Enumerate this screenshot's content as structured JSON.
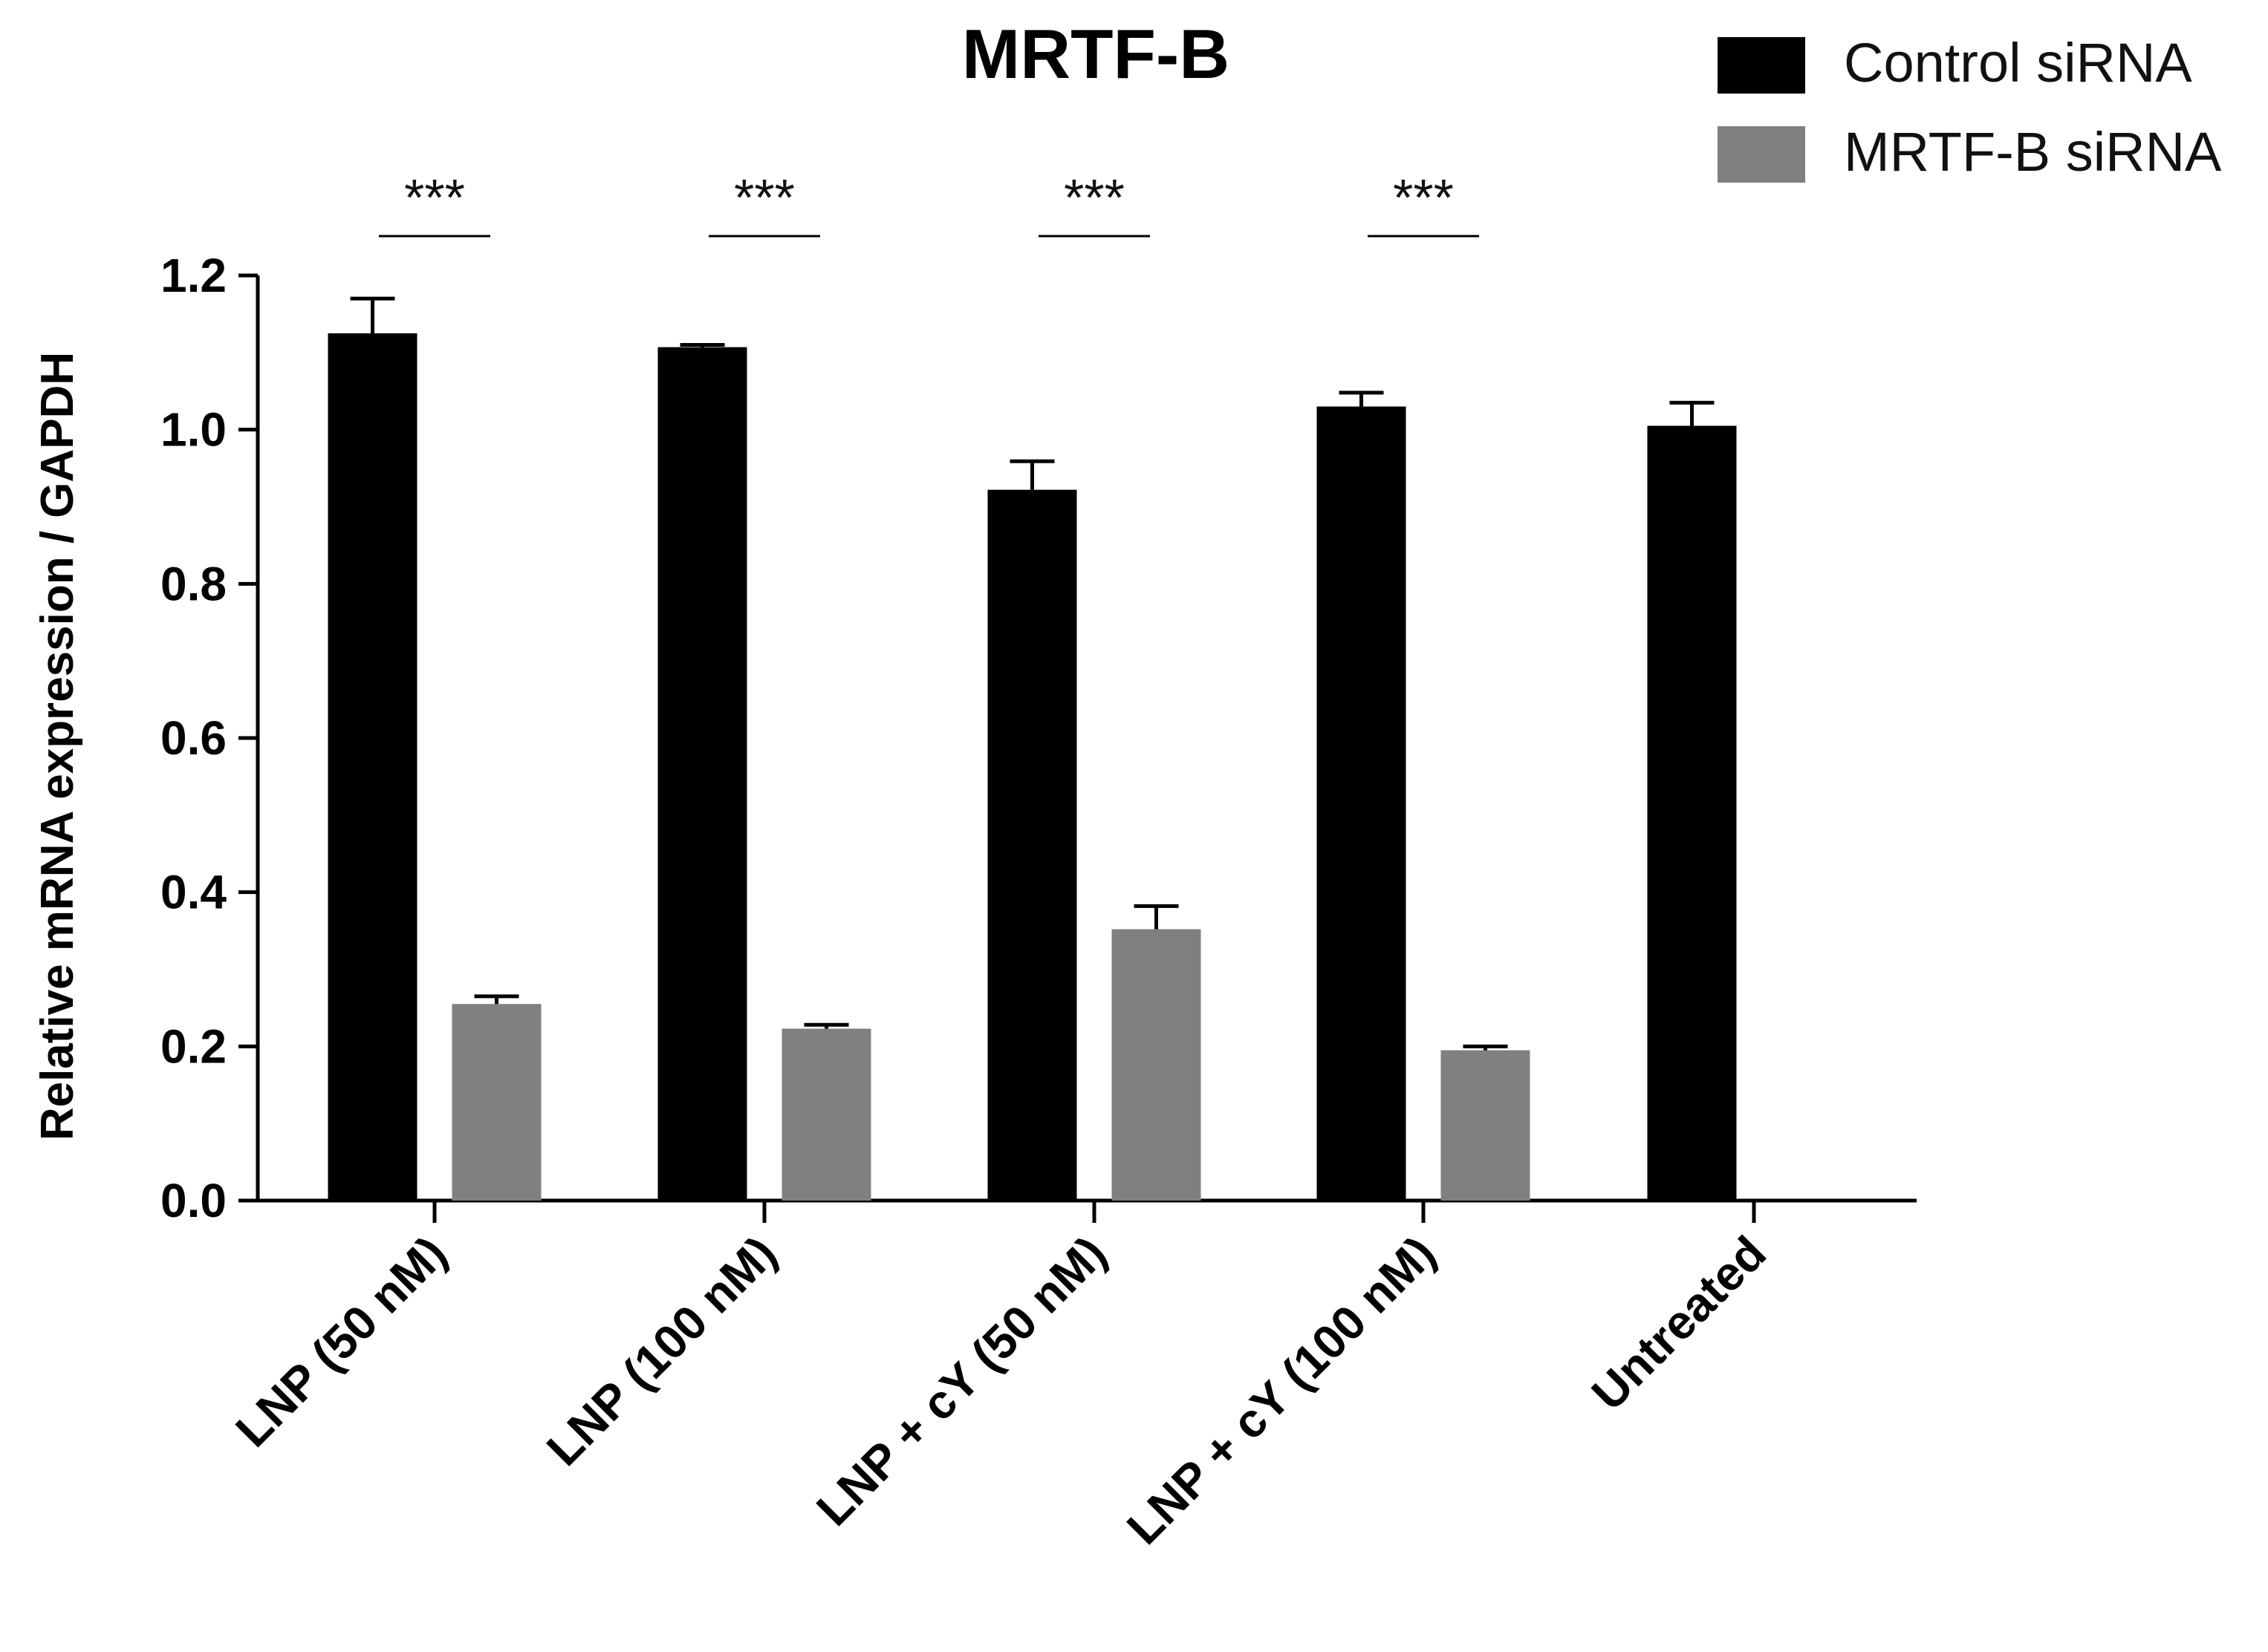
{
  "chart_data": {
    "type": "bar",
    "title": "MRTF-B",
    "xlabel": "",
    "ylabel": "Relative mRNA expression / GAPDH",
    "ylim": [
      0,
      1.2
    ],
    "yticks": [
      "0.0",
      "0.2",
      "0.4",
      "0.6",
      "0.8",
      "1.0",
      "1.2"
    ],
    "categories": [
      "LNP (50 nM)",
      "LNP (100 nM)",
      "LNP + cY (50 nM)",
      "LNP + cY (100 nM)",
      "Untreated"
    ],
    "series": [
      {
        "name": "Control siRNA",
        "color": "#000000",
        "values": [
          1.125,
          1.107,
          0.922,
          1.03,
          1.005
        ],
        "errors": [
          0.045,
          0.003,
          0.037,
          0.018,
          0.03
        ]
      },
      {
        "name": "MRTF-B siRNA",
        "color": "#808080",
        "values": [
          0.255,
          0.223,
          0.352,
          0.195,
          null
        ],
        "errors": [
          0.01,
          0.005,
          0.03,
          0.005,
          null
        ]
      }
    ],
    "significance": [
      "***",
      "***",
      "***",
      "***"
    ],
    "legend_position": "top-right",
    "grid": false
  }
}
